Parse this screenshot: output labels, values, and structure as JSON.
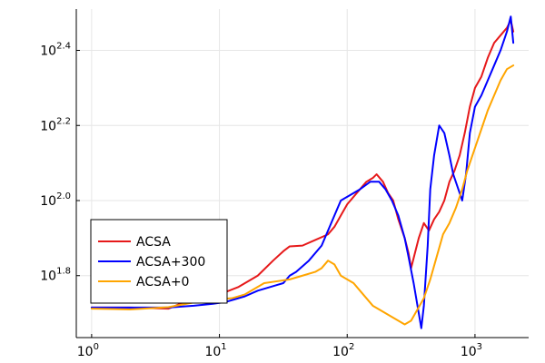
{
  "chart_data": {
    "type": "line",
    "title": "",
    "xlabel": "",
    "ylabel": "",
    "xscale": "log10",
    "yscale": "log10",
    "xlim_log10": [
      -0.12,
      3.42
    ],
    "ylim_log10": [
      1.635,
      2.51
    ],
    "grid": true,
    "legend_position": "bottom-left",
    "x_ticks": [
      {
        "base": "10",
        "exp": "0"
      },
      {
        "base": "10",
        "exp": "1"
      },
      {
        "base": "10",
        "exp": "2"
      },
      {
        "base": "10",
        "exp": "3"
      }
    ],
    "y_ticks": [
      {
        "base": "10",
        "exp": "1.8"
      },
      {
        "base": "10",
        "exp": "2.0"
      },
      {
        "base": "10",
        "exp": "2.2"
      },
      {
        "base": "10",
        "exp": "2.4"
      }
    ],
    "series": [
      {
        "name": "ACSA",
        "color": "#e6191a",
        "points_log10": [
          [
            0.0,
            1.715
          ],
          [
            0.3,
            1.715
          ],
          [
            0.6,
            1.712
          ],
          [
            0.7,
            1.726
          ],
          [
            0.9,
            1.735
          ],
          [
            1.0,
            1.75
          ],
          [
            1.15,
            1.77
          ],
          [
            1.3,
            1.8
          ],
          [
            1.42,
            1.84
          ],
          [
            1.5,
            1.865
          ],
          [
            1.55,
            1.878
          ],
          [
            1.65,
            1.88
          ],
          [
            1.75,
            1.895
          ],
          [
            1.85,
            1.91
          ],
          [
            1.9,
            1.93
          ],
          [
            1.95,
            1.96
          ],
          [
            2.0,
            1.99
          ],
          [
            2.1,
            2.03
          ],
          [
            2.15,
            2.05
          ],
          [
            2.2,
            2.06
          ],
          [
            2.23,
            2.07
          ],
          [
            2.28,
            2.05
          ],
          [
            2.32,
            2.02
          ],
          [
            2.36,
            2.0
          ],
          [
            2.4,
            1.95
          ],
          [
            2.45,
            1.9
          ],
          [
            2.48,
            1.86
          ],
          [
            2.5,
            1.82
          ],
          [
            2.53,
            1.86
          ],
          [
            2.56,
            1.9
          ],
          [
            2.6,
            1.94
          ],
          [
            2.64,
            1.92
          ],
          [
            2.68,
            1.95
          ],
          [
            2.72,
            1.97
          ],
          [
            2.76,
            2.0
          ],
          [
            2.8,
            2.05
          ],
          [
            2.84,
            2.08
          ],
          [
            2.88,
            2.12
          ],
          [
            2.92,
            2.18
          ],
          [
            2.96,
            2.25
          ],
          [
            3.0,
            2.3
          ],
          [
            3.05,
            2.33
          ],
          [
            3.1,
            2.38
          ],
          [
            3.15,
            2.42
          ],
          [
            3.2,
            2.44
          ],
          [
            3.25,
            2.46
          ],
          [
            3.28,
            2.48
          ],
          [
            3.3,
            2.45
          ]
        ]
      },
      {
        "name": "ACSA+300",
        "color": "#0000ff",
        "points_log10": [
          [
            0.0,
            1.715
          ],
          [
            0.3,
            1.715
          ],
          [
            0.6,
            1.715
          ],
          [
            0.8,
            1.72
          ],
          [
            0.95,
            1.725
          ],
          [
            1.05,
            1.73
          ],
          [
            1.1,
            1.735
          ],
          [
            1.2,
            1.745
          ],
          [
            1.3,
            1.76
          ],
          [
            1.45,
            1.775
          ],
          [
            1.5,
            1.78
          ],
          [
            1.55,
            1.8
          ],
          [
            1.6,
            1.81
          ],
          [
            1.7,
            1.84
          ],
          [
            1.8,
            1.88
          ],
          [
            1.9,
            1.96
          ],
          [
            1.95,
            2.0
          ],
          [
            2.0,
            2.01
          ],
          [
            2.1,
            2.03
          ],
          [
            2.18,
            2.05
          ],
          [
            2.25,
            2.05
          ],
          [
            2.3,
            2.03
          ],
          [
            2.35,
            2.0
          ],
          [
            2.4,
            1.96
          ],
          [
            2.45,
            1.9
          ],
          [
            2.48,
            1.85
          ],
          [
            2.52,
            1.78
          ],
          [
            2.56,
            1.7
          ],
          [
            2.58,
            1.66
          ],
          [
            2.6,
            1.72
          ],
          [
            2.63,
            1.88
          ],
          [
            2.65,
            2.03
          ],
          [
            2.68,
            2.12
          ],
          [
            2.72,
            2.2
          ],
          [
            2.76,
            2.18
          ],
          [
            2.8,
            2.12
          ],
          [
            2.83,
            2.07
          ],
          [
            2.87,
            2.03
          ],
          [
            2.9,
            2.0
          ],
          [
            2.93,
            2.07
          ],
          [
            2.96,
            2.18
          ],
          [
            3.0,
            2.25
          ],
          [
            3.05,
            2.28
          ],
          [
            3.1,
            2.32
          ],
          [
            3.15,
            2.36
          ],
          [
            3.2,
            2.4
          ],
          [
            3.25,
            2.45
          ],
          [
            3.28,
            2.49
          ],
          [
            3.3,
            2.42
          ]
        ]
      },
      {
        "name": "ACSA+0",
        "color": "#ffa500",
        "points_log10": [
          [
            0.0,
            1.712
          ],
          [
            0.3,
            1.71
          ],
          [
            0.6,
            1.716
          ],
          [
            0.9,
            1.735
          ],
          [
            1.1,
            1.74
          ],
          [
            1.2,
            1.75
          ],
          [
            1.35,
            1.78
          ],
          [
            1.45,
            1.785
          ],
          [
            1.55,
            1.79
          ],
          [
            1.65,
            1.8
          ],
          [
            1.75,
            1.81
          ],
          [
            1.8,
            1.82
          ],
          [
            1.85,
            1.84
          ],
          [
            1.9,
            1.83
          ],
          [
            1.95,
            1.8
          ],
          [
            2.0,
            1.79
          ],
          [
            2.05,
            1.78
          ],
          [
            2.1,
            1.76
          ],
          [
            2.15,
            1.74
          ],
          [
            2.2,
            1.72
          ],
          [
            2.25,
            1.71
          ],
          [
            2.3,
            1.7
          ],
          [
            2.35,
            1.69
          ],
          [
            2.4,
            1.68
          ],
          [
            2.45,
            1.67
          ],
          [
            2.5,
            1.68
          ],
          [
            2.55,
            1.71
          ],
          [
            2.6,
            1.74
          ],
          [
            2.65,
            1.79
          ],
          [
            2.7,
            1.85
          ],
          [
            2.75,
            1.91
          ],
          [
            2.8,
            1.94
          ],
          [
            2.85,
            1.98
          ],
          [
            2.9,
            2.03
          ],
          [
            2.94,
            2.08
          ],
          [
            2.98,
            2.12
          ],
          [
            3.02,
            2.16
          ],
          [
            3.06,
            2.2
          ],
          [
            3.1,
            2.24
          ],
          [
            3.15,
            2.28
          ],
          [
            3.2,
            2.32
          ],
          [
            3.25,
            2.35
          ],
          [
            3.3,
            2.36
          ]
        ]
      }
    ]
  }
}
